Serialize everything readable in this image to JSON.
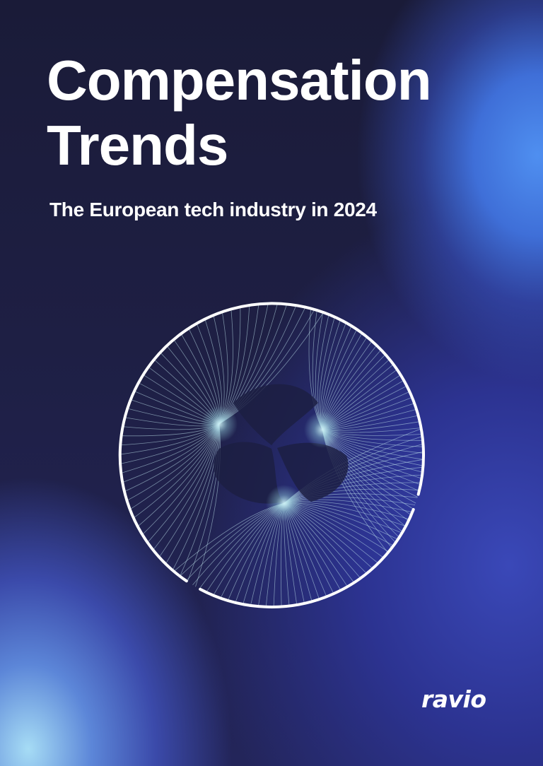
{
  "cover": {
    "title_line1": "Compensation",
    "title_line2": "Trends",
    "subtitle": "The European tech industry in 2024",
    "brand": "ravio"
  },
  "colors": {
    "background_dark": "#1b1c3d",
    "accent_blue": "#4f8ff0",
    "accent_light_blue": "#a6dcf5",
    "emblem_line": "#bfe4ec",
    "text": "#ffffff"
  },
  "graphic": {
    "icon": "circular-fan-emblem"
  }
}
